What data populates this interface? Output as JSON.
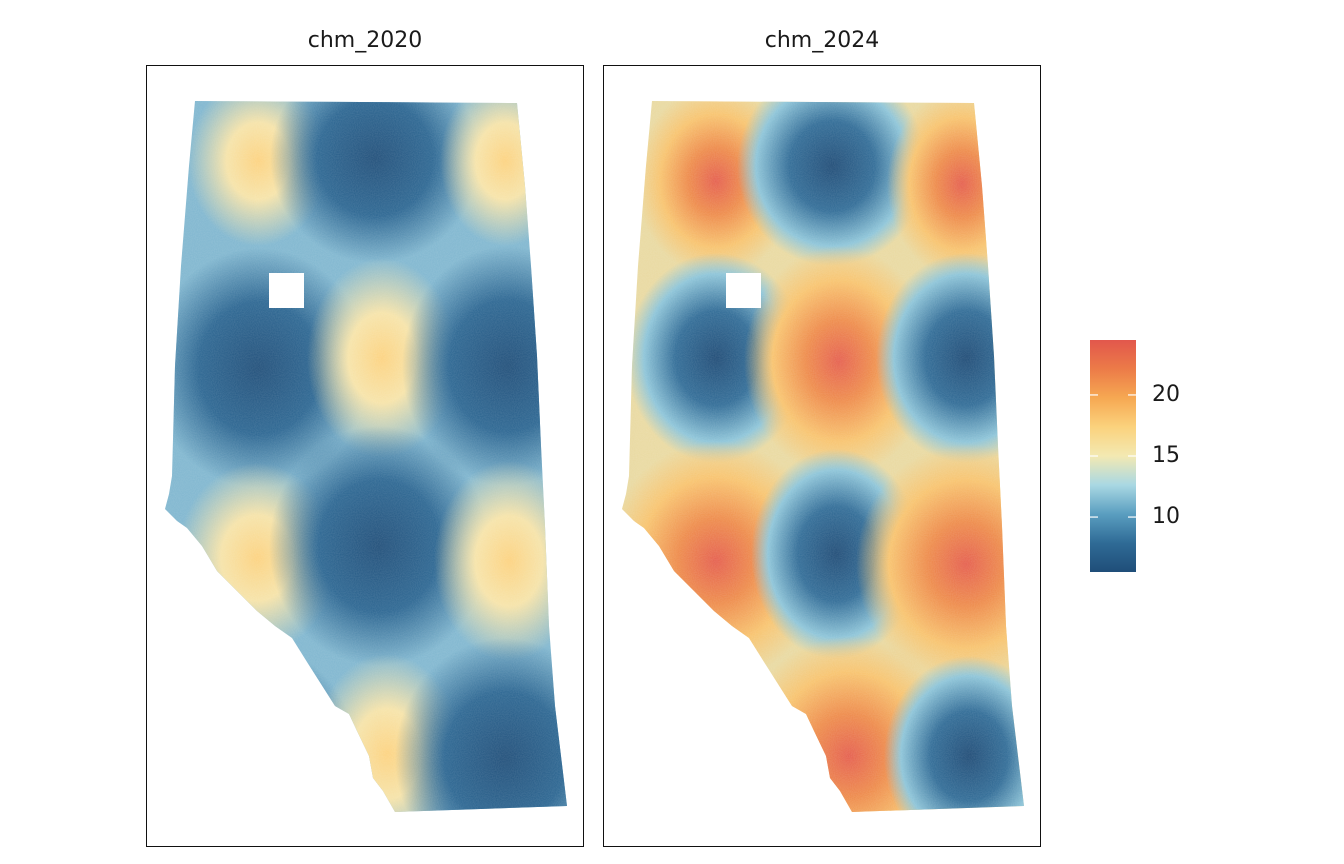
{
  "panels": [
    {
      "title": "chm_2020",
      "layer": "chm_2020"
    },
    {
      "title": "chm_2024",
      "layer": "chm_2024"
    }
  ],
  "legend": {
    "min": 5.5,
    "max": 24.5,
    "ticks": [
      {
        "value": 10,
        "label": "10"
      },
      {
        "value": 15,
        "label": "15"
      },
      {
        "value": 20,
        "label": "20"
      }
    ],
    "colors": [
      "#1f4e79",
      "#2f6b96",
      "#5a9ec0",
      "#a9d8e3",
      "#f3e9b2",
      "#fbd27d",
      "#f6a852",
      "#ec7b48",
      "#e2574c"
    ]
  }
}
